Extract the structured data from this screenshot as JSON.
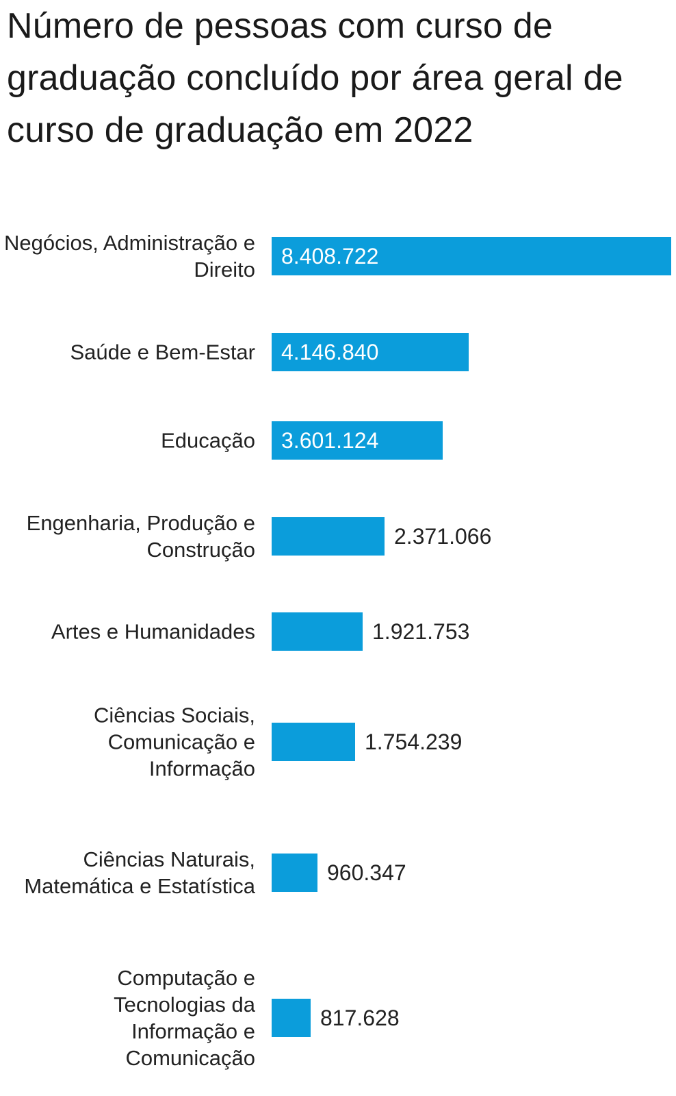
{
  "chart_data": {
    "type": "bar",
    "orientation": "horizontal",
    "title": "Número de pessoas com curso de graduação concluído por área geral de curso de graduação em 2022",
    "categories": [
      "Negócios, Administração e Direito",
      "Saúde e Bem-Estar",
      "Educação",
      "Engenharia, Produção e Construção",
      "Artes e Humanidades",
      "Ciências Sociais, Comunicação e Informação",
      "Ciências Naturais, Matemática e Estatística",
      "Computação e Tecnologias da Informação e Comunicação"
    ],
    "values": [
      8408722,
      4146840,
      3601124,
      2371066,
      1921753,
      1754239,
      960347,
      817628
    ],
    "value_labels": [
      "8.408.722",
      "4.146.840",
      "3.601.124",
      "2.371.066",
      "1.921.753",
      "1.754.239",
      "960.347",
      "817.628"
    ],
    "xlim": [
      0,
      8408722
    ],
    "grid": false,
    "legend": "none",
    "bar_color": "#0b9ddb",
    "label_inside_color": "#ffffff",
    "label_outside_color": "#222222"
  }
}
